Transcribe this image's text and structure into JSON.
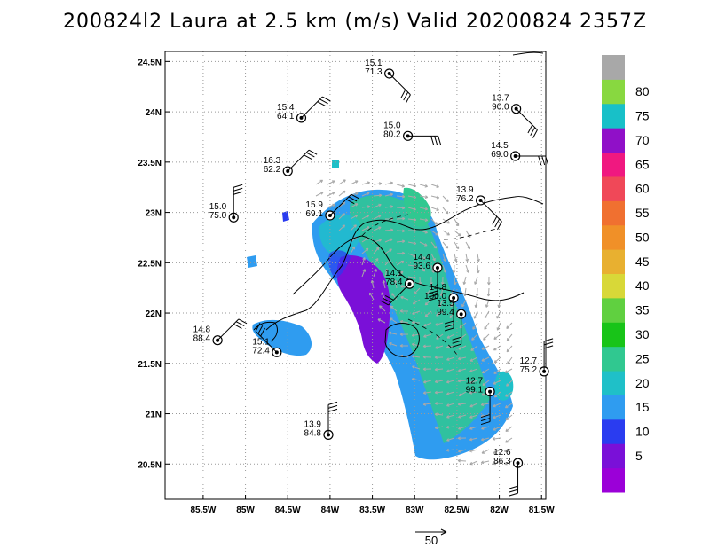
{
  "title": "200824l2 Laura at 2.5 km (m/s) Valid 20200824  2357Z",
  "reference_vector": {
    "label": "50"
  },
  "map": {
    "lon_range": [
      -85.95,
      -81.45
    ],
    "lat_range": [
      20.15,
      24.6
    ],
    "grid": true,
    "x_ticks": [
      {
        "lon": -85.5,
        "label": "85.5W"
      },
      {
        "lon": -85.0,
        "label": "85W"
      },
      {
        "lon": -84.5,
        "label": "84.5W"
      },
      {
        "lon": -84.0,
        "label": "84W"
      },
      {
        "lon": -83.5,
        "label": "83.5W"
      },
      {
        "lon": -83.0,
        "label": "83W"
      },
      {
        "lon": -82.5,
        "label": "82.5W"
      },
      {
        "lon": -82.0,
        "label": "82W"
      },
      {
        "lon": -81.5,
        "label": "81.5W"
      }
    ],
    "y_ticks": [
      {
        "lat": 20.5,
        "label": "20.5N"
      },
      {
        "lat": 21.0,
        "label": "21N"
      },
      {
        "lat": 21.5,
        "label": "21.5N"
      },
      {
        "lat": 22.0,
        "label": "22N"
      },
      {
        "lat": 22.5,
        "label": "22.5N"
      },
      {
        "lat": 23.0,
        "label": "23N"
      },
      {
        "lat": 23.5,
        "label": "23.5N"
      },
      {
        "lat": 24.0,
        "label": "24N"
      },
      {
        "lat": 24.5,
        "label": "24.5N"
      }
    ]
  },
  "colorbar": {
    "levels": [
      {
        "label": "",
        "color": "#9b00d8"
      },
      {
        "label": "5",
        "color": "#7a10d8"
      },
      {
        "label": "10",
        "color": "#2a3cf0"
      },
      {
        "label": "15",
        "color": "#2f9cf0"
      },
      {
        "label": "20",
        "color": "#1fc0c8"
      },
      {
        "label": "25",
        "color": "#30c890"
      },
      {
        "label": "30",
        "color": "#18c418"
      },
      {
        "label": "35",
        "color": "#60d040"
      },
      {
        "label": "40",
        "color": "#d8d838"
      },
      {
        "label": "45",
        "color": "#e8b030"
      },
      {
        "label": "50",
        "color": "#f09028"
      },
      {
        "label": "55",
        "color": "#f07030"
      },
      {
        "label": "60",
        "color": "#f04858"
      },
      {
        "label": "65",
        "color": "#f01880"
      },
      {
        "label": "70",
        "color": "#9010c8"
      },
      {
        "label": "75",
        "color": "#18c0c8"
      },
      {
        "label": "80",
        "color": "#88d840"
      },
      {
        "label": "",
        "color": "#a8a8a8"
      }
    ]
  },
  "stations": [
    {
      "lon": -83.3,
      "lat": 24.38,
      "top": "15.1",
      "bottom": "71.3",
      "barb": "se"
    },
    {
      "lon": -84.34,
      "lat": 23.94,
      "top": "15.4",
      "bottom": "64.1",
      "barb": "ne"
    },
    {
      "lon": -83.08,
      "lat": 23.76,
      "top": "15.0",
      "bottom": "80.2",
      "barb": "e"
    },
    {
      "lon": -81.8,
      "lat": 24.03,
      "top": "13.7",
      "bottom": "90.0",
      "barb": "se"
    },
    {
      "lon": -81.81,
      "lat": 23.56,
      "top": "14.5",
      "bottom": "69.0",
      "barb": "e"
    },
    {
      "lon": -84.5,
      "lat": 23.41,
      "top": "16.3",
      "bottom": "62.2",
      "barb": "ne"
    },
    {
      "lon": -82.22,
      "lat": 23.12,
      "top": "13.9",
      "bottom": "76.2",
      "barb": "se"
    },
    {
      "lon": -85.14,
      "lat": 22.95,
      "top": "15.0",
      "bottom": "75.0",
      "barb": "n"
    },
    {
      "lon": -84.0,
      "lat": 22.97,
      "top": "15.9",
      "bottom": "69.1",
      "barb": "ne"
    },
    {
      "lon": -82.73,
      "lat": 22.45,
      "top": "14.4",
      "bottom": "93.6",
      "barb": "s"
    },
    {
      "lon": -83.06,
      "lat": 22.29,
      "top": "14.1",
      "bottom": "78.4",
      "barb": "sw"
    },
    {
      "lon": -82.54,
      "lat": 22.15,
      "top": "14.8",
      "bottom": "100.0",
      "barb": "s"
    },
    {
      "lon": -82.45,
      "lat": 21.99,
      "top": "13.5",
      "bottom": "99.4",
      "barb": "s"
    },
    {
      "lon": -85.33,
      "lat": 21.73,
      "top": "14.8",
      "bottom": "88.4",
      "barb": "ne"
    },
    {
      "lon": -84.63,
      "lat": 21.61,
      "top": "15.1",
      "bottom": "72.4",
      "barb": "nw"
    },
    {
      "lon": -81.47,
      "lat": 21.42,
      "top": "12.7",
      "bottom": "75.2",
      "barb": "n"
    },
    {
      "lon": -82.11,
      "lat": 21.22,
      "top": "12.7",
      "bottom": "99.1",
      "barb": "s"
    },
    {
      "lon": -84.02,
      "lat": 20.79,
      "top": "13.9",
      "bottom": "84.8",
      "barb": "n"
    },
    {
      "lon": -81.78,
      "lat": 20.51,
      "top": "12.6",
      "bottom": "86.3",
      "barb": "s"
    }
  ]
}
